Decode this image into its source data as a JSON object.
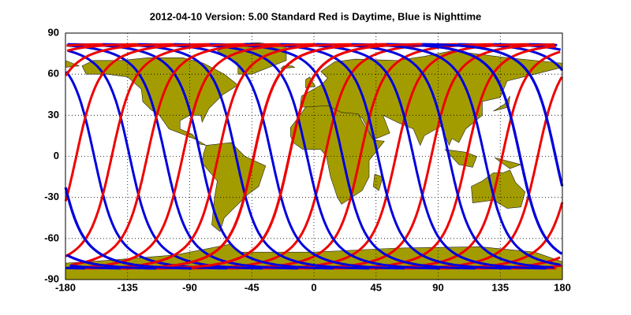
{
  "chart_data": {
    "type": "map",
    "title": "2012-04-10    Version: 5.00  Standard     Red is Daytime, Blue is Nighttime",
    "xlim": [
      -180,
      180
    ],
    "ylim": [
      -90,
      90
    ],
    "xticks": [
      -180,
      -135,
      -90,
      -45,
      0,
      45,
      90,
      135,
      180
    ],
    "yticks": [
      -90,
      -60,
      -30,
      0,
      30,
      60,
      90
    ],
    "grid": true
  }
}
